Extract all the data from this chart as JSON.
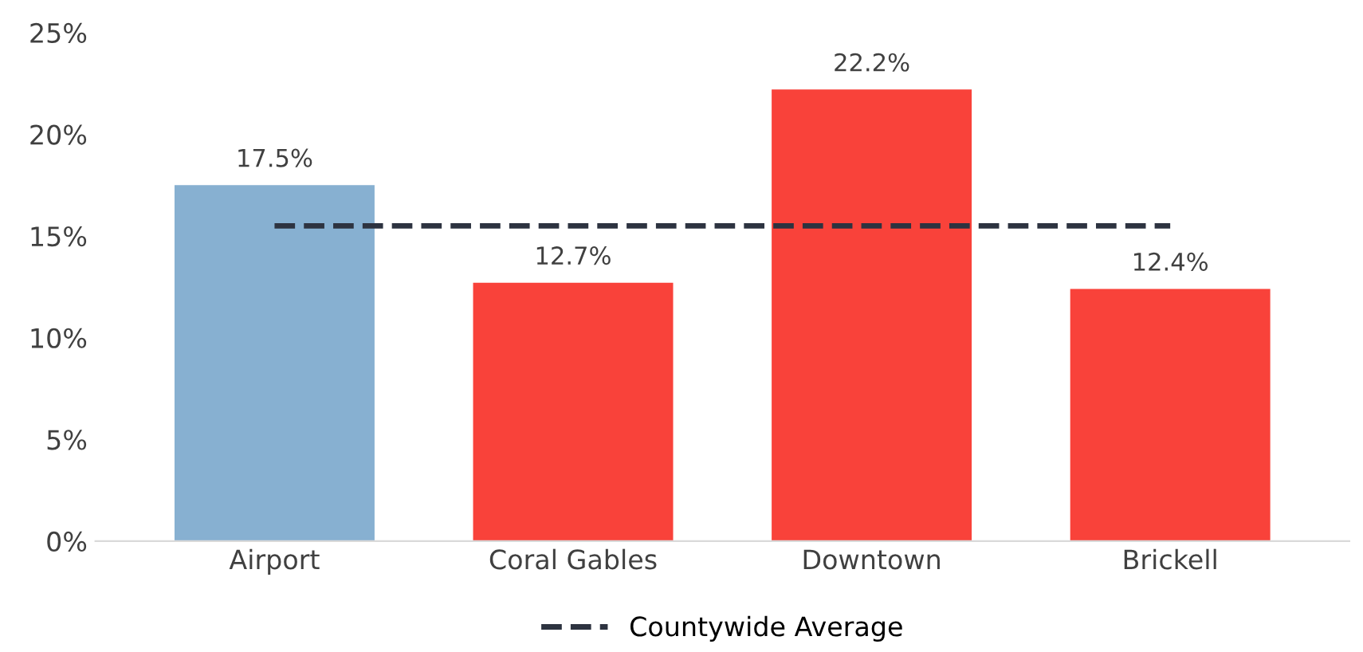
{
  "chart_data": {
    "type": "bar",
    "categories": [
      "Airport",
      "Coral Gables",
      "Downtown",
      "Brickell"
    ],
    "series": [
      {
        "colors": [
          "#87b0d1",
          "#f9423a",
          "#f9423a",
          "#f9423a"
        ],
        "values": [
          17.5,
          12.7,
          22.2,
          12.4
        ],
        "value_labels": [
          "17.5%",
          "12.7%",
          "22.2%",
          "12.4%"
        ]
      },
      {
        "type": "line",
        "name": "Countywide Average",
        "color": "#2d3340",
        "line_style": "dashed",
        "marker": "none",
        "values": [
          15.5,
          15.5,
          15.5,
          15.5
        ]
      }
    ],
    "ylim": [
      0,
      25
    ],
    "yticks": [
      {
        "value": 0,
        "label": "0%"
      },
      {
        "value": 5,
        "label": "5%"
      },
      {
        "value": 10,
        "label": "10%"
      },
      {
        "value": 15,
        "label": "15%"
      },
      {
        "value": 20,
        "label": "20%"
      },
      {
        "value": 25,
        "label": "25%"
      }
    ],
    "legend": "bottom"
  }
}
